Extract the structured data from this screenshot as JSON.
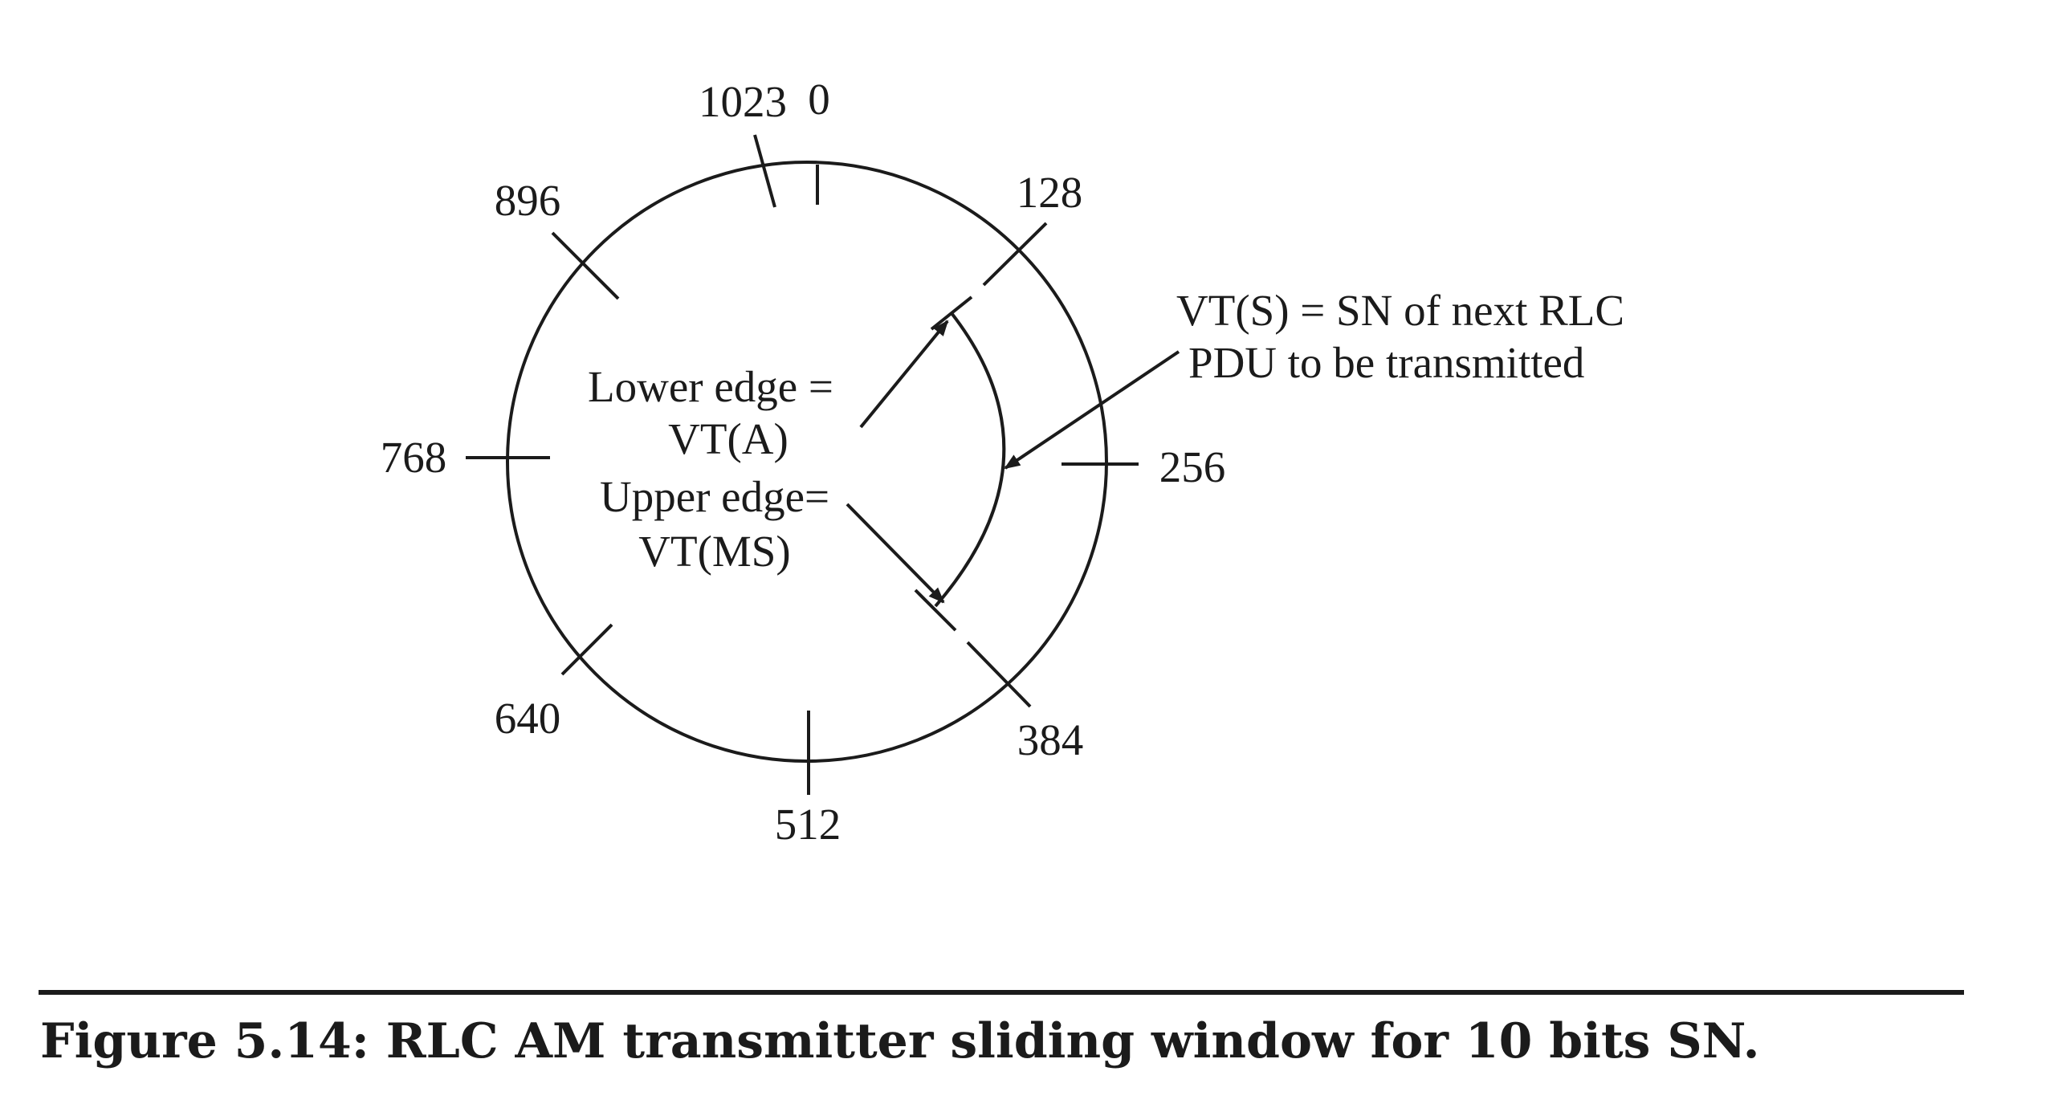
{
  "diagram": {
    "tick_labels": {
      "t0": "0",
      "t128": "128",
      "t256": "256",
      "t384": "384",
      "t512": "512",
      "t640": "640",
      "t768": "768",
      "t896": "896",
      "t1023": "1023"
    },
    "lower_edge_line1": "Lower edge =",
    "lower_edge_line2": "VT(A)",
    "upper_edge_line1": "Upper edge=",
    "upper_edge_line2": "VT(MS)",
    "vts_line1": "VT(S) = SN of next RLC",
    "vts_line2": "PDU to be transmitted"
  },
  "caption": "Figure 5.14: RLC AM transmitter sliding window for 10 bits SN.",
  "colors": {
    "ink": "#1b1b1b",
    "background": "#ffffff"
  }
}
